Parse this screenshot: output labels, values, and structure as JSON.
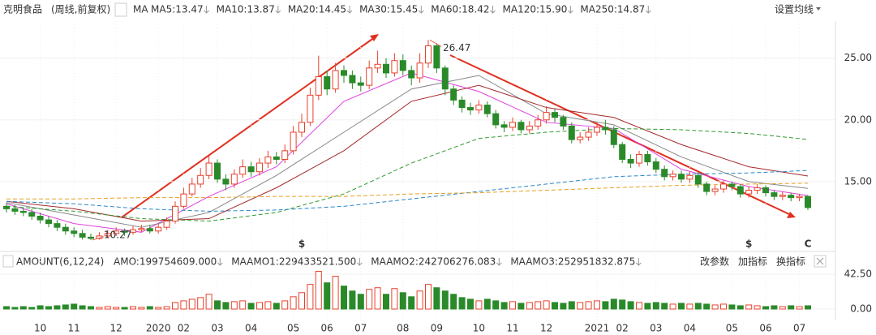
{
  "header": {
    "stock": "克明食品",
    "mode": "(周线,前复权)",
    "ma": "MA",
    "ma_labels": [
      {
        "text": "MA5:13.47",
        "color": "#555555"
      },
      {
        "text": "MA10:13.87",
        "color": "#e040e0"
      },
      {
        "text": "MA20:14.45",
        "color": "#888888"
      },
      {
        "text": "MA30:15.45",
        "color": "#a52a2a"
      },
      {
        "text": "MA60:18.42",
        "color": "#2e9a2e"
      },
      {
        "text": "MA120:15.90",
        "color": "#2a86c8"
      },
      {
        "text": "MA250:14.87",
        "color": "#e8a020"
      }
    ],
    "settings": "设置均线"
  },
  "volume_header": {
    "indicator": "AMOUNT(6,12,24)",
    "labels": [
      {
        "text": "AMO:199754609.000",
        "color": "#333333"
      },
      {
        "text": "MAAMO1:229433521.500",
        "color": "#e040e0"
      },
      {
        "text": "MAAMO2:242706276.083",
        "color": "#888888"
      },
      {
        "text": "MAAMO3:252951832.875",
        "color": "#a52a2a"
      }
    ],
    "buttons": [
      "改参数",
      "加指标",
      "换指标"
    ]
  },
  "chart_data": {
    "type": "candlestick",
    "candles": [
      [
        13.0,
        12.8,
        13.3,
        12.5
      ],
      [
        12.8,
        12.6,
        13.1,
        12.3
      ],
      [
        12.6,
        12.5,
        12.9,
        12.2
      ],
      [
        12.5,
        12.2,
        12.8,
        11.9
      ],
      [
        12.2,
        11.9,
        12.5,
        11.6
      ],
      [
        11.9,
        11.6,
        12.2,
        11.3
      ],
      [
        11.6,
        11.3,
        11.9,
        11.0
      ],
      [
        11.3,
        11.0,
        11.6,
        10.7
      ],
      [
        11.0,
        10.8,
        11.3,
        10.5
      ],
      [
        10.8,
        10.5,
        11.1,
        10.3
      ],
      [
        10.5,
        10.4,
        10.8,
        10.27
      ],
      [
        10.4,
        10.6,
        10.9,
        10.3
      ],
      [
        10.6,
        10.8,
        11.1,
        10.5
      ],
      [
        10.8,
        11.0,
        11.3,
        10.6
      ],
      [
        11.0,
        10.9,
        11.2,
        10.6
      ],
      [
        10.9,
        11.1,
        11.4,
        10.7
      ],
      [
        11.1,
        11.2,
        11.5,
        10.9
      ],
      [
        11.2,
        11.0,
        11.5,
        10.8
      ],
      [
        11.0,
        11.3,
        11.6,
        10.8
      ],
      [
        11.3,
        11.8,
        12.1,
        11.1
      ],
      [
        11.8,
        13.0,
        13.4,
        11.6
      ],
      [
        13.0,
        14.0,
        14.5,
        12.8
      ],
      [
        14.0,
        14.8,
        15.3,
        13.8
      ],
      [
        14.8,
        15.5,
        16.1,
        14.5
      ],
      [
        15.5,
        16.5,
        17.2,
        15.2
      ],
      [
        16.5,
        15.2,
        16.8,
        14.9
      ],
      [
        15.2,
        14.8,
        15.6,
        14.3
      ],
      [
        14.8,
        15.6,
        16.0,
        14.5
      ],
      [
        15.6,
        16.2,
        16.8,
        15.3
      ],
      [
        16.2,
        15.8,
        16.6,
        15.4
      ],
      [
        15.8,
        16.5,
        16.9,
        15.5
      ],
      [
        16.5,
        17.0,
        17.5,
        16.1
      ],
      [
        17.0,
        16.8,
        17.4,
        16.4
      ],
      [
        16.8,
        17.5,
        18.0,
        16.5
      ],
      [
        17.5,
        19.0,
        19.5,
        17.2
      ],
      [
        19.0,
        19.8,
        20.5,
        18.6
      ],
      [
        19.8,
        22.0,
        22.6,
        19.5
      ],
      [
        22.0,
        23.5,
        25.2,
        21.6
      ],
      [
        23.5,
        22.5,
        24.0,
        22.0
      ],
      [
        22.5,
        24.0,
        24.6,
        22.2
      ],
      [
        24.0,
        23.6,
        24.4,
        23.0
      ],
      [
        23.6,
        23.0,
        24.0,
        22.5
      ],
      [
        23.0,
        22.8,
        23.5,
        22.3
      ],
      [
        22.8,
        24.2,
        24.8,
        22.5
      ],
      [
        24.2,
        24.5,
        25.6,
        23.8
      ],
      [
        24.5,
        23.8,
        25.0,
        23.4
      ],
      [
        23.8,
        24.8,
        25.4,
        23.5
      ],
      [
        24.8,
        24.0,
        25.3,
        23.6
      ],
      [
        24.0,
        23.4,
        24.4,
        22.8
      ],
      [
        23.4,
        24.6,
        25.4,
        23.0
      ],
      [
        24.6,
        26.0,
        26.47,
        24.2
      ],
      [
        26.0,
        24.2,
        26.2,
        23.8
      ],
      [
        24.2,
        22.5,
        24.4,
        22.0
      ],
      [
        22.5,
        21.6,
        22.8,
        21.2
      ],
      [
        21.6,
        21.0,
        21.9,
        20.6
      ],
      [
        21.0,
        20.8,
        21.4,
        20.4
      ],
      [
        20.8,
        21.2,
        21.6,
        20.5
      ],
      [
        21.2,
        20.5,
        21.5,
        20.2
      ],
      [
        20.5,
        19.6,
        20.8,
        19.3
      ],
      [
        19.6,
        19.4,
        19.9,
        19.0
      ],
      [
        19.4,
        19.8,
        20.2,
        19.1
      ],
      [
        19.8,
        19.2,
        20.0,
        18.9
      ],
      [
        19.2,
        19.5,
        19.9,
        18.9
      ],
      [
        19.5,
        20.0,
        20.4,
        19.2
      ],
      [
        20.0,
        20.6,
        21.1,
        19.7
      ],
      [
        20.6,
        20.2,
        20.9,
        19.8
      ],
      [
        20.2,
        19.5,
        20.4,
        19.2
      ],
      [
        19.5,
        18.4,
        19.8,
        18.1
      ],
      [
        18.4,
        18.6,
        19.0,
        18.1
      ],
      [
        18.6,
        19.0,
        19.4,
        18.3
      ],
      [
        19.0,
        19.4,
        19.8,
        18.7
      ],
      [
        19.4,
        19.2,
        20.0,
        18.8
      ],
      [
        19.2,
        18.0,
        19.5,
        17.7
      ],
      [
        18.0,
        16.8,
        18.2,
        16.5
      ],
      [
        16.8,
        16.5,
        17.2,
        16.1
      ],
      [
        16.5,
        17.2,
        17.5,
        16.2
      ],
      [
        17.2,
        16.6,
        17.5,
        16.3
      ],
      [
        16.6,
        16.0,
        16.9,
        15.7
      ],
      [
        16.0,
        15.4,
        16.3,
        15.1
      ],
      [
        15.4,
        15.6,
        15.9,
        15.1
      ],
      [
        15.6,
        15.2,
        15.9,
        14.9
      ],
      [
        15.2,
        15.5,
        15.8,
        14.9
      ],
      [
        15.5,
        14.8,
        15.8,
        14.5
      ],
      [
        14.8,
        14.2,
        15.0,
        13.9
      ],
      [
        14.2,
        14.4,
        14.7,
        13.9
      ],
      [
        14.4,
        14.8,
        15.1,
        14.1
      ],
      [
        14.8,
        14.6,
        15.0,
        14.3
      ],
      [
        14.6,
        14.0,
        14.8,
        13.7
      ],
      [
        14.0,
        14.3,
        14.6,
        13.7
      ],
      [
        14.3,
        14.5,
        14.8,
        14.0
      ],
      [
        14.5,
        14.1,
        14.7,
        13.8
      ],
      [
        14.1,
        13.8,
        14.3,
        13.5
      ],
      [
        13.8,
        13.9,
        14.2,
        13.5
      ],
      [
        13.9,
        13.7,
        14.1,
        13.4
      ],
      [
        13.7,
        13.8,
        14.0,
        13.4
      ],
      [
        13.8,
        12.9,
        13.9,
        12.7
      ]
    ],
    "volume": [
      3,
      2,
      3,
      2,
      4,
      3,
      4,
      5,
      6,
      4,
      3,
      2,
      3,
      2,
      2,
      3,
      2,
      3,
      2,
      3,
      8,
      10,
      12,
      14,
      18,
      10,
      8,
      9,
      10,
      7,
      8,
      9,
      7,
      10,
      15,
      20,
      30,
      46,
      32,
      40,
      28,
      22,
      18,
      24,
      26,
      18,
      25,
      20,
      15,
      22,
      30,
      26,
      22,
      18,
      14,
      12,
      10,
      12,
      10,
      8,
      9,
      7,
      8,
      9,
      10,
      8,
      7,
      9,
      8,
      9,
      10,
      9,
      12,
      11,
      9,
      8,
      7,
      8,
      7,
      6,
      7,
      6,
      7,
      6,
      5,
      6,
      5,
      4,
      5,
      4,
      3,
      4,
      3,
      4,
      3,
      4
    ],
    "ma_x": [
      0,
      8,
      16,
      24,
      32,
      40,
      48,
      56,
      64,
      72,
      80,
      88,
      95
    ],
    "series": [
      {
        "name": "MA10",
        "color": "#e040e0",
        "dash": false,
        "values": [
          13.2,
          11.6,
          10.9,
          13.8,
          16.2,
          21.5,
          23.8,
          22.3,
          19.8,
          19.3,
          16.0,
          14.6,
          13.87
        ]
      },
      {
        "name": "MA20",
        "color": "#888888",
        "dash": false,
        "values": [
          13.3,
          12.3,
          11.3,
          12.5,
          15.5,
          19.0,
          22.5,
          23.6,
          20.5,
          19.6,
          17.0,
          15.0,
          14.45
        ]
      },
      {
        "name": "MA30",
        "color": "#a52a2a",
        "dash": false,
        "values": [
          13.4,
          12.8,
          11.8,
          12.0,
          14.5,
          17.5,
          21.5,
          22.8,
          21.0,
          20.2,
          18.0,
          16.2,
          15.45
        ]
      },
      {
        "name": "MA60",
        "color": "#2e9a2e",
        "dash": true,
        "values": [
          13.0,
          12.6,
          12.0,
          11.8,
          12.5,
          14.0,
          16.5,
          18.5,
          19.0,
          19.3,
          19.2,
          18.9,
          18.42
        ]
      },
      {
        "name": "MA120",
        "color": "#2a86c8",
        "dash": true,
        "values": [
          13.4,
          13.2,
          12.8,
          12.6,
          12.7,
          13.0,
          13.6,
          14.2,
          14.8,
          15.4,
          15.6,
          15.7,
          15.9
        ]
      },
      {
        "name": "MA250",
        "color": "#e8a020",
        "dash": true,
        "values": [
          13.6,
          13.6,
          13.7,
          13.7,
          13.8,
          13.8,
          14.0,
          14.1,
          14.3,
          14.5,
          14.7,
          14.8,
          14.87
        ]
      }
    ],
    "ylim": [
      10,
      28
    ],
    "yticks": [
      {
        "value": 25,
        "label": "25.00"
      },
      {
        "value": 20,
        "label": "20.00"
      },
      {
        "value": 15,
        "label": "15.00"
      }
    ],
    "vlim": [
      0,
      46
    ],
    "vticks": [
      {
        "value": 42.5,
        "label": "42.50"
      },
      {
        "value": 0,
        "label": "0.00"
      }
    ],
    "xticks": [
      {
        "value": 4,
        "label": "10"
      },
      {
        "value": 8,
        "label": "11"
      },
      {
        "value": 13,
        "label": "12"
      },
      {
        "value": 18,
        "label": "2020"
      },
      {
        "value": 21,
        "label": "02"
      },
      {
        "value": 25,
        "label": "03"
      },
      {
        "value": 29,
        "label": "04"
      },
      {
        "value": 34,
        "label": "05"
      },
      {
        "value": 38,
        "label": "06"
      },
      {
        "value": 42,
        "label": "07"
      },
      {
        "value": 47,
        "label": "08"
      },
      {
        "value": 51,
        "label": "09"
      },
      {
        "value": 56,
        "label": "10"
      },
      {
        "value": 60,
        "label": "11"
      },
      {
        "value": 64,
        "label": "12"
      },
      {
        "value": 70,
        "label": "2021"
      },
      {
        "value": 73,
        "label": "02"
      },
      {
        "value": 77,
        "label": "03"
      },
      {
        "value": 81,
        "label": "04"
      },
      {
        "value": 86,
        "label": "05"
      },
      {
        "value": 90,
        "label": "06"
      },
      {
        "value": 94,
        "label": "07"
      }
    ],
    "max_index": 50,
    "min_index": 10,
    "event_markers": [
      {
        "index": 35,
        "label": "$",
        "color": "#e02020"
      },
      {
        "index": 88,
        "label": "$",
        "color": "#e02020"
      },
      {
        "index": 95,
        "label": "C",
        "color": "#d020d0"
      }
    ]
  }
}
